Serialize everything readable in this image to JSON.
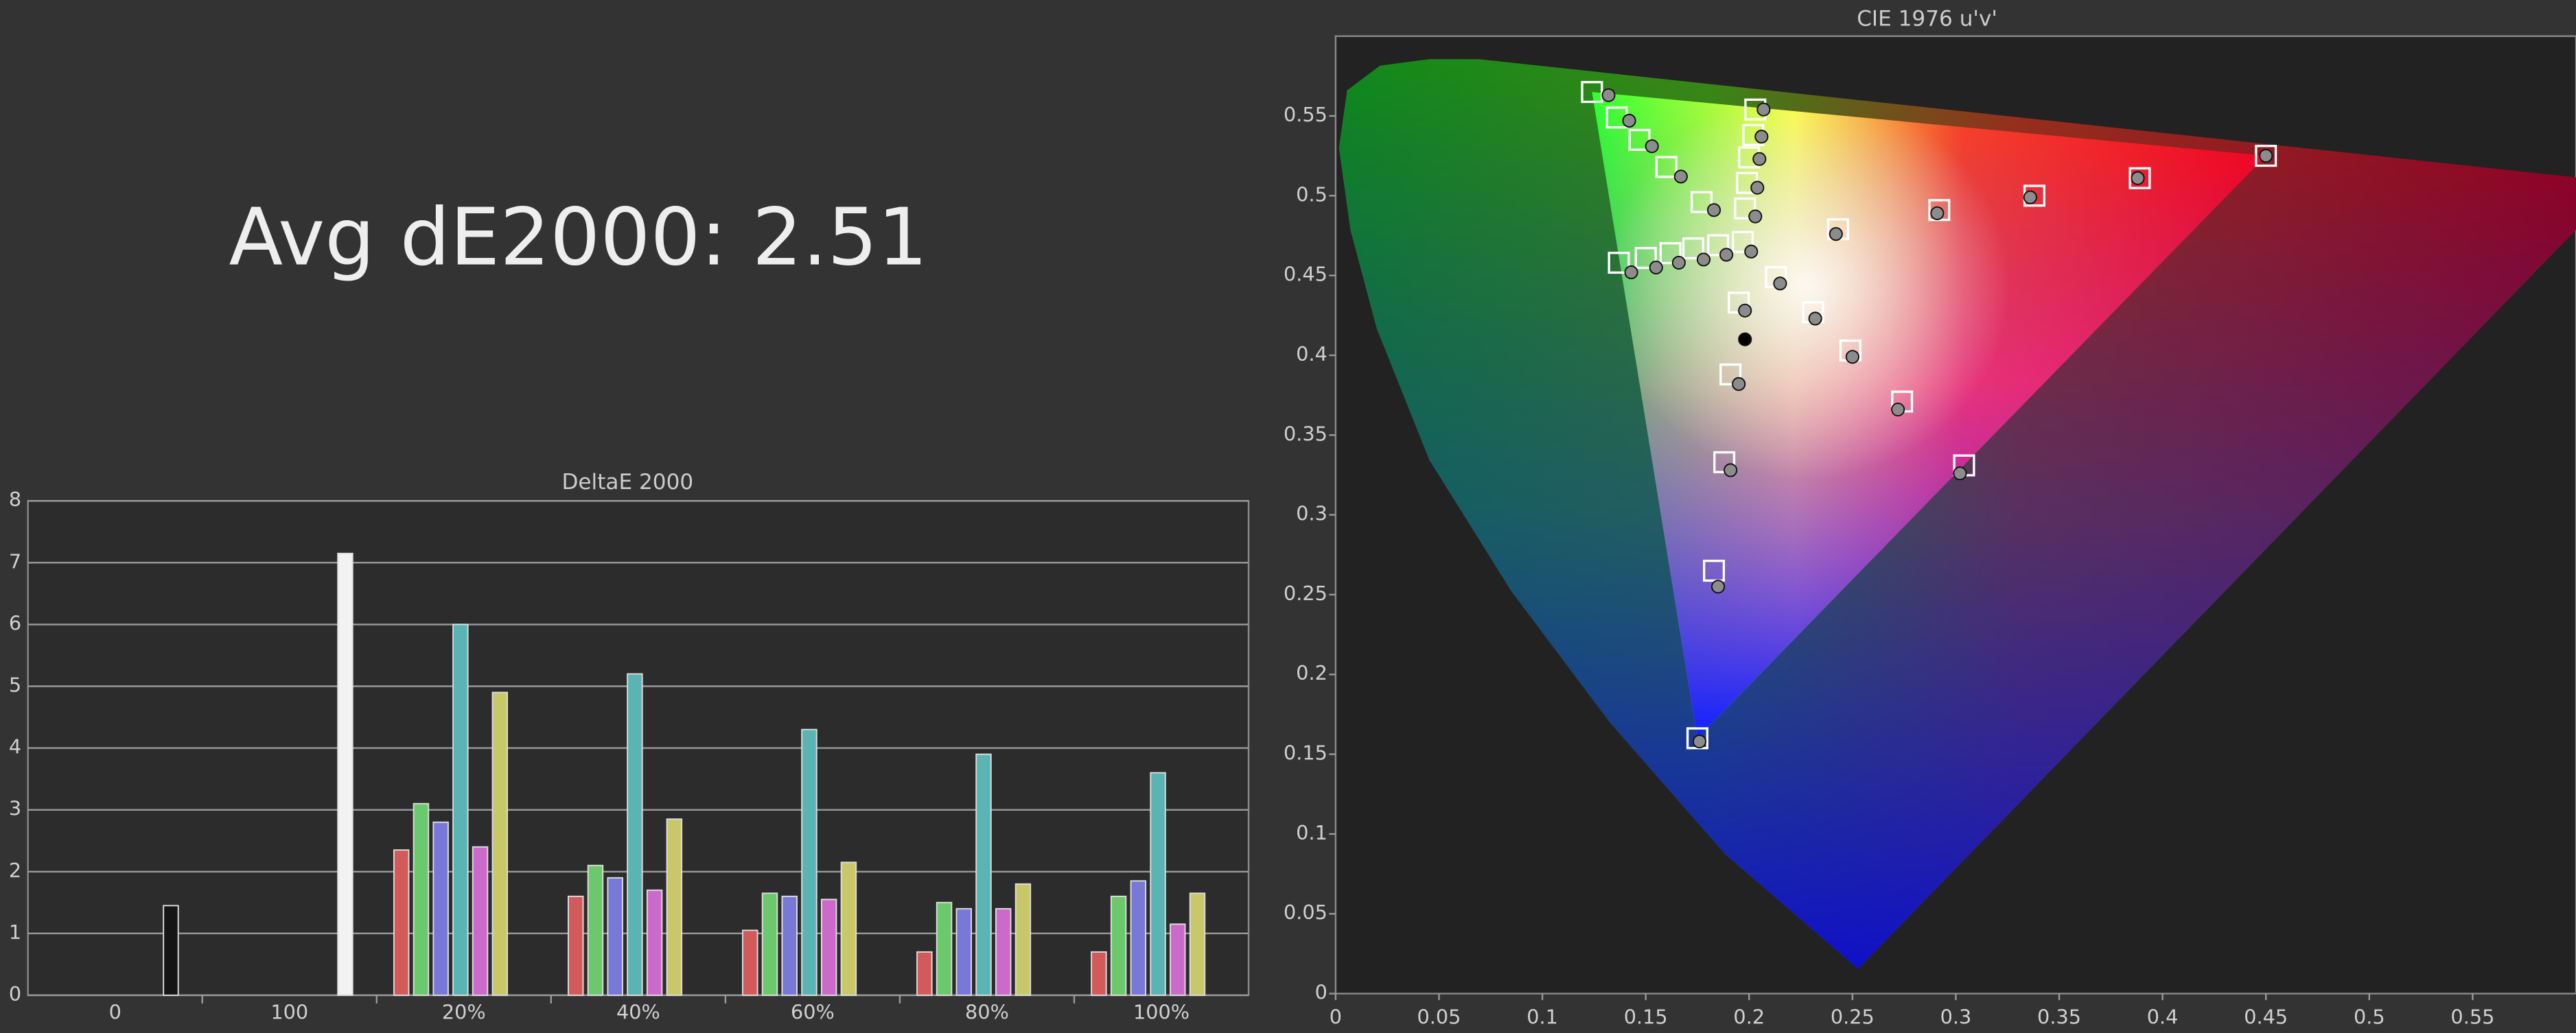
{
  "headline": "Avg dE2000: 2.51",
  "chart_data": [
    {
      "type": "bar",
      "title": "DeltaE 2000",
      "categories": [
        "0",
        "100",
        "20%",
        "40%",
        "60%",
        "80%",
        "100%"
      ],
      "series": [
        {
          "color": "#d25a5a",
          "values": [
            null,
            null,
            2.35,
            1.6,
            1.05,
            0.7,
            0.7
          ]
        },
        {
          "color": "#6cc86c",
          "values": [
            null,
            null,
            3.1,
            2.1,
            1.65,
            1.5,
            1.6
          ]
        },
        {
          "color": "#7878d8",
          "values": [
            null,
            null,
            2.8,
            1.9,
            1.6,
            1.4,
            1.85
          ]
        },
        {
          "color": "#5ab4b4",
          "values": [
            null,
            null,
            6.0,
            5.2,
            4.3,
            3.9,
            3.6
          ]
        },
        {
          "color": "#cc6acc",
          "values": [
            null,
            null,
            2.4,
            1.7,
            1.55,
            1.4,
            1.15
          ]
        },
        {
          "color": "#c8c86a",
          "values": [
            null,
            null,
            4.9,
            2.85,
            2.15,
            1.8,
            1.65
          ]
        },
        {
          "color": "#151515",
          "values": [
            1.45,
            null,
            null,
            null,
            null,
            null,
            null
          ]
        },
        {
          "color": "#f2f2f2",
          "values": [
            null,
            7.15,
            null,
            null,
            null,
            null,
            null
          ]
        }
      ],
      "ylim": [
        0,
        8
      ],
      "yticks": [
        0,
        1,
        2,
        3,
        4,
        5,
        6,
        7,
        8
      ],
      "grid": true
    },
    {
      "type": "scatter",
      "title": "CIE 1976 u'v'",
      "xlim": [
        0,
        0.6
      ],
      "xticks": [
        0,
        0.05,
        0.1,
        0.15,
        0.2,
        0.25,
        0.3,
        0.35,
        0.4,
        0.45,
        0.5,
        0.55
      ],
      "ylim": [
        0,
        0.6
      ],
      "yticks": [
        0,
        0.05,
        0.1,
        0.15,
        0.2,
        0.25,
        0.3,
        0.35,
        0.4,
        0.45,
        0.5,
        0.55
      ],
      "series": [
        {
          "marker": "square",
          "color": "#ffffff",
          "x": [
            0.243,
            0.292,
            0.338,
            0.389,
            0.45,
            0.177,
            0.16,
            0.147,
            0.136,
            0.124,
            0.195,
            0.191,
            0.188,
            0.183,
            0.175,
            0.185,
            0.173,
            0.162,
            0.15,
            0.137,
            0.213,
            0.231,
            0.249,
            0.274,
            0.304,
            0.198,
            0.199,
            0.2,
            0.202,
            0.203,
            0.197
          ],
          "y": [
            0.479,
            0.491,
            0.5,
            0.511,
            0.525,
            0.496,
            0.518,
            0.535,
            0.549,
            0.565,
            0.433,
            0.388,
            0.333,
            0.265,
            0.16,
            0.469,
            0.467,
            0.464,
            0.461,
            0.458,
            0.449,
            0.427,
            0.403,
            0.371,
            0.331,
            0.492,
            0.508,
            0.524,
            0.538,
            0.554,
            0.471
          ]
        },
        {
          "marker": "circle",
          "color": "#8c8c8c",
          "x": [
            0.242,
            0.291,
            0.336,
            0.388,
            0.45,
            0.183,
            0.167,
            0.153,
            0.142,
            0.132,
            0.198,
            0.195,
            0.191,
            0.185,
            0.176,
            0.189,
            0.178,
            0.166,
            0.155,
            0.143,
            0.215,
            0.232,
            0.25,
            0.272,
            0.302,
            0.203,
            0.204,
            0.205,
            0.206,
            0.207,
            0.201
          ],
          "y": [
            0.476,
            0.489,
            0.499,
            0.511,
            0.525,
            0.491,
            0.512,
            0.531,
            0.547,
            0.563,
            0.428,
            0.382,
            0.328,
            0.255,
            0.158,
            0.463,
            0.46,
            0.458,
            0.455,
            0.452,
            0.445,
            0.423,
            0.399,
            0.366,
            0.326,
            0.487,
            0.505,
            0.523,
            0.537,
            0.554,
            0.465
          ]
        },
        {
          "marker": "circle",
          "color": "#000000",
          "x": [
            0.198
          ],
          "y": [
            0.41
          ]
        }
      ]
    }
  ]
}
